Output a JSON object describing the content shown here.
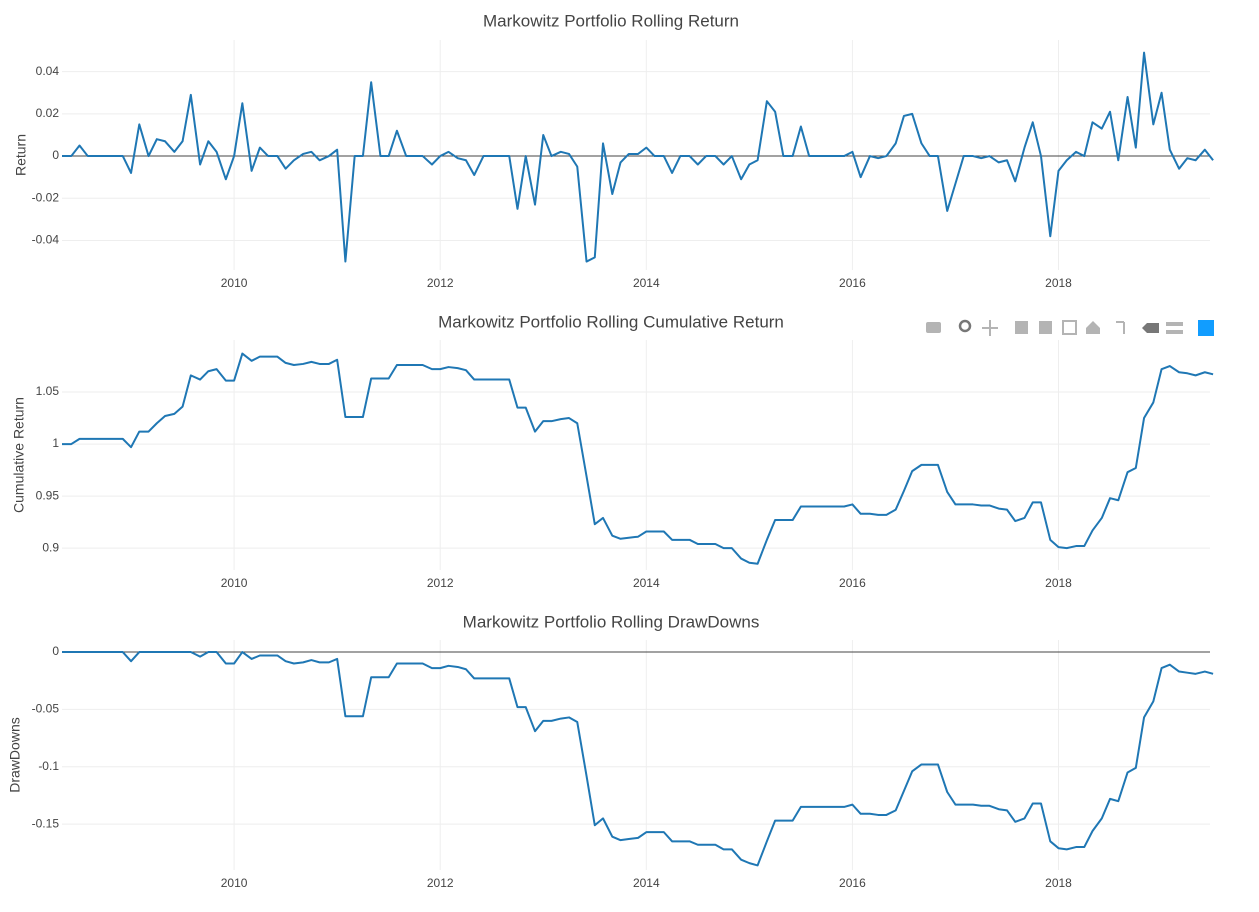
{
  "chart_data": [
    {
      "type": "line",
      "title": "Markowitz Portfolio Rolling Return",
      "y_label": "Return",
      "color": "#1f77b4",
      "grid": true,
      "zeroline": true,
      "xlim": [
        2008.33,
        2019.47
      ],
      "xticks": [
        2010,
        2012,
        2014,
        2016,
        2018
      ],
      "ylim": [
        -0.054,
        0.055
      ],
      "yticks": [
        -0.04,
        -0.02,
        0,
        0.02,
        0.04
      ],
      "x": [
        2008.33,
        2008.42,
        2008.5,
        2008.58,
        2008.67,
        2008.75,
        2008.83,
        2008.92,
        2009,
        2009.08,
        2009.17,
        2009.25,
        2009.33,
        2009.42,
        2009.5,
        2009.58,
        2009.67,
        2009.75,
        2009.83,
        2009.92,
        2010,
        2010.08,
        2010.17,
        2010.25,
        2010.33,
        2010.42,
        2010.5,
        2010.58,
        2010.67,
        2010.75,
        2010.83,
        2010.92,
        2011,
        2011.08,
        2011.17,
        2011.25,
        2011.33,
        2011.42,
        2011.5,
        2011.58,
        2011.67,
        2011.75,
        2011.83,
        2011.92,
        2012,
        2012.08,
        2012.17,
        2012.25,
        2012.33,
        2012.42,
        2012.5,
        2012.58,
        2012.67,
        2012.75,
        2012.83,
        2012.92,
        2013,
        2013.08,
        2013.17,
        2013.25,
        2013.33,
        2013.42,
        2013.5,
        2013.58,
        2013.67,
        2013.75,
        2013.83,
        2013.92,
        2014,
        2014.08,
        2014.17,
        2014.25,
        2014.33,
        2014.42,
        2014.5,
        2014.58,
        2014.67,
        2014.75,
        2014.83,
        2014.92,
        2015,
        2015.08,
        2015.17,
        2015.25,
        2015.33,
        2015.42,
        2015.5,
        2015.58,
        2015.67,
        2015.75,
        2015.83,
        2015.92,
        2016,
        2016.08,
        2016.17,
        2016.25,
        2016.33,
        2016.42,
        2016.5,
        2016.58,
        2016.67,
        2016.75,
        2016.83,
        2016.92,
        2017,
        2017.08,
        2017.17,
        2017.25,
        2017.33,
        2017.42,
        2017.5,
        2017.58,
        2017.67,
        2017.75,
        2017.83,
        2017.92,
        2018,
        2018.08,
        2018.17,
        2018.25,
        2018.33,
        2018.42,
        2018.5,
        2018.58,
        2018.67,
        2018.75,
        2018.83,
        2018.92,
        2019,
        2019.08,
        2019.17,
        2019.25,
        2019.33,
        2019.42,
        2019.5
      ],
      "values": [
        0,
        0,
        0.005,
        0,
        0,
        0,
        0,
        0,
        -0.008,
        0.015,
        0,
        0.008,
        0.007,
        0.002,
        0.007,
        0.029,
        -0.004,
        0.007,
        0.002,
        -0.011,
        0,
        0.025,
        -0.007,
        0.004,
        0,
        0,
        -0.006,
        -0.002,
        0.001,
        0.002,
        -0.002,
        0,
        0.003,
        -0.05,
        0,
        0,
        0.035,
        0,
        0,
        0.012,
        0,
        0,
        0,
        -0.004,
        0,
        0.002,
        -0.001,
        -0.002,
        -0.009,
        0,
        0,
        0,
        0,
        -0.025,
        0,
        -0.023,
        0.01,
        0,
        0.002,
        0.001,
        -0.005,
        -0.05,
        -0.048,
        0.006,
        -0.018,
        -0.003,
        0.001,
        0.001,
        0.004,
        0,
        0,
        -0.008,
        0,
        0,
        -0.004,
        0,
        0,
        -0.004,
        0,
        -0.011,
        -0.004,
        -0.002,
        0.026,
        0.021,
        0,
        0,
        0.014,
        0,
        0,
        0,
        0,
        0,
        0.002,
        -0.01,
        0,
        -0.001,
        0,
        0.006,
        0.019,
        0.02,
        0.006,
        0,
        0,
        -0.026,
        -0.013,
        0,
        0,
        -0.001,
        0,
        -0.003,
        -0.002,
        -0.012,
        0.004,
        0.016,
        0,
        -0.038,
        -0.007,
        -0.002,
        0.002,
        0,
        0.016,
        0.013,
        0.021,
        -0.002,
        0.028,
        0.004,
        0.049,
        0.015,
        0.03,
        0.003,
        -0.006,
        -0.001,
        -0.002,
        0.003,
        -0.002
      ]
    },
    {
      "type": "line",
      "title": "Markowitz Portfolio Rolling Cumulative Return",
      "y_label": "Cumulative Return",
      "color": "#1f77b4",
      "grid": true,
      "zeroline": false,
      "xlim": [
        2008.33,
        2019.47
      ],
      "xticks": [
        2010,
        2012,
        2014,
        2016,
        2018
      ],
      "ylim": [
        0.879,
        1.1
      ],
      "yticks": [
        0.9,
        0.95,
        1,
        1.05
      ],
      "x": [
        2008.33,
        2008.42,
        2008.5,
        2008.58,
        2008.67,
        2008.75,
        2008.83,
        2008.92,
        2009,
        2009.08,
        2009.17,
        2009.25,
        2009.33,
        2009.42,
        2009.5,
        2009.58,
        2009.67,
        2009.75,
        2009.83,
        2009.92,
        2010,
        2010.08,
        2010.17,
        2010.25,
        2010.33,
        2010.42,
        2010.5,
        2010.58,
        2010.67,
        2010.75,
        2010.83,
        2010.92,
        2011,
        2011.08,
        2011.17,
        2011.25,
        2011.33,
        2011.42,
        2011.5,
        2011.58,
        2011.67,
        2011.75,
        2011.83,
        2011.92,
        2012,
        2012.08,
        2012.17,
        2012.25,
        2012.33,
        2012.42,
        2012.5,
        2012.58,
        2012.67,
        2012.75,
        2012.83,
        2012.92,
        2013,
        2013.08,
        2013.17,
        2013.25,
        2013.33,
        2013.42,
        2013.5,
        2013.58,
        2013.67,
        2013.75,
        2013.83,
        2013.92,
        2014,
        2014.08,
        2014.17,
        2014.25,
        2014.33,
        2014.42,
        2014.5,
        2014.58,
        2014.67,
        2014.75,
        2014.83,
        2014.92,
        2015,
        2015.08,
        2015.17,
        2015.25,
        2015.33,
        2015.42,
        2015.5,
        2015.58,
        2015.67,
        2015.75,
        2015.83,
        2015.92,
        2016,
        2016.08,
        2016.17,
        2016.25,
        2016.33,
        2016.42,
        2016.5,
        2016.58,
        2016.67,
        2016.75,
        2016.83,
        2016.92,
        2017,
        2017.08,
        2017.17,
        2017.25,
        2017.33,
        2017.42,
        2017.5,
        2017.58,
        2017.67,
        2017.75,
        2017.83,
        2017.92,
        2018,
        2018.08,
        2018.17,
        2018.25,
        2018.33,
        2018.42,
        2018.5,
        2018.58,
        2018.67,
        2018.75,
        2018.83,
        2018.92,
        2019,
        2019.08,
        2019.17,
        2019.25,
        2019.33,
        2019.42,
        2019.5
      ],
      "values": [
        1,
        1,
        1.005,
        1.005,
        1.005,
        1.005,
        1.005,
        1.005,
        0.997,
        1.012,
        1.012,
        1.02,
        1.027,
        1.029,
        1.036,
        1.066,
        1.062,
        1.07,
        1.072,
        1.061,
        1.061,
        1.087,
        1.08,
        1.084,
        1.084,
        1.084,
        1.078,
        1.076,
        1.077,
        1.079,
        1.077,
        1.077,
        1.081,
        1.026,
        1.026,
        1.026,
        1.063,
        1.063,
        1.063,
        1.076,
        1.076,
        1.076,
        1.076,
        1.072,
        1.072,
        1.074,
        1.073,
        1.071,
        1.062,
        1.062,
        1.062,
        1.062,
        1.062,
        1.035,
        1.035,
        1.012,
        1.022,
        1.022,
        1.024,
        1.025,
        1.02,
        0.969,
        0.923,
        0.929,
        0.912,
        0.909,
        0.91,
        0.911,
        0.916,
        0.916,
        0.916,
        0.908,
        0.908,
        0.908,
        0.904,
        0.904,
        0.904,
        0.9,
        0.9,
        0.89,
        0.886,
        0.885,
        0.908,
        0.927,
        0.927,
        0.927,
        0.94,
        0.94,
        0.94,
        0.94,
        0.94,
        0.94,
        0.942,
        0.933,
        0.933,
        0.932,
        0.932,
        0.937,
        0.955,
        0.974,
        0.98,
        0.98,
        0.98,
        0.954,
        0.942,
        0.942,
        0.942,
        0.941,
        0.941,
        0.938,
        0.937,
        0.926,
        0.929,
        0.944,
        0.944,
        0.908,
        0.901,
        0.9,
        0.902,
        0.902,
        0.917,
        0.929,
        0.948,
        0.946,
        0.973,
        0.977,
        1.025,
        1.04,
        1.072,
        1.075,
        1.069,
        1.068,
        1.066,
        1.069,
        1.067
      ]
    },
    {
      "type": "line",
      "title": "Markowitz Portfolio Rolling DrawDowns",
      "y_label": "DrawDowns",
      "color": "#1f77b4",
      "grid": true,
      "zeroline": true,
      "xlim": [
        2008.33,
        2019.47
      ],
      "xticks": [
        2010,
        2012,
        2014,
        2016,
        2018
      ],
      "ylim": [
        -0.19,
        0.0105
      ],
      "yticks": [
        -0.15,
        -0.1,
        -0.05,
        0
      ],
      "x": [
        2008.33,
        2008.42,
        2008.5,
        2008.58,
        2008.67,
        2008.75,
        2008.83,
        2008.92,
        2009,
        2009.08,
        2009.17,
        2009.25,
        2009.33,
        2009.42,
        2009.5,
        2009.58,
        2009.67,
        2009.75,
        2009.83,
        2009.92,
        2010,
        2010.08,
        2010.17,
        2010.25,
        2010.33,
        2010.42,
        2010.5,
        2010.58,
        2010.67,
        2010.75,
        2010.83,
        2010.92,
        2011,
        2011.08,
        2011.17,
        2011.25,
        2011.33,
        2011.42,
        2011.5,
        2011.58,
        2011.67,
        2011.75,
        2011.83,
        2011.92,
        2012,
        2012.08,
        2012.17,
        2012.25,
        2012.33,
        2012.42,
        2012.5,
        2012.58,
        2012.67,
        2012.75,
        2012.83,
        2012.92,
        2013,
        2013.08,
        2013.17,
        2013.25,
        2013.33,
        2013.42,
        2013.5,
        2013.58,
        2013.67,
        2013.75,
        2013.83,
        2013.92,
        2014,
        2014.08,
        2014.17,
        2014.25,
        2014.33,
        2014.42,
        2014.5,
        2014.58,
        2014.67,
        2014.75,
        2014.83,
        2014.92,
        2015,
        2015.08,
        2015.17,
        2015.25,
        2015.33,
        2015.42,
        2015.5,
        2015.58,
        2015.67,
        2015.75,
        2015.83,
        2015.92,
        2016,
        2016.08,
        2016.17,
        2016.25,
        2016.33,
        2016.42,
        2016.5,
        2016.58,
        2016.67,
        2016.75,
        2016.83,
        2016.92,
        2017,
        2017.08,
        2017.17,
        2017.25,
        2017.33,
        2017.42,
        2017.5,
        2017.58,
        2017.67,
        2017.75,
        2017.83,
        2017.92,
        2018,
        2018.08,
        2018.17,
        2018.25,
        2018.33,
        2018.42,
        2018.5,
        2018.58,
        2018.67,
        2018.75,
        2018.83,
        2018.92,
        2019,
        2019.08,
        2019.17,
        2019.25,
        2019.33,
        2019.42,
        2019.5
      ],
      "values": [
        0,
        0,
        0,
        0,
        0,
        0,
        0,
        0,
        -0.008,
        0,
        0,
        0,
        0,
        0,
        0,
        0,
        -0.004,
        0,
        0,
        -0.01,
        -0.01,
        0,
        -0.006,
        -0.003,
        -0.003,
        -0.003,
        -0.008,
        -0.01,
        -0.009,
        -0.007,
        -0.009,
        -0.009,
        -0.006,
        -0.056,
        -0.056,
        -0.056,
        -0.022,
        -0.022,
        -0.022,
        -0.01,
        -0.01,
        -0.01,
        -0.01,
        -0.014,
        -0.014,
        -0.012,
        -0.013,
        -0.015,
        -0.023,
        -0.023,
        -0.023,
        -0.023,
        -0.023,
        -0.048,
        -0.048,
        -0.069,
        -0.06,
        -0.06,
        -0.058,
        -0.057,
        -0.061,
        -0.108,
        -0.151,
        -0.145,
        -0.161,
        -0.164,
        -0.163,
        -0.162,
        -0.157,
        -0.157,
        -0.157,
        -0.165,
        -0.165,
        -0.165,
        -0.168,
        -0.168,
        -0.168,
        -0.172,
        -0.172,
        -0.181,
        -0.184,
        -0.186,
        -0.165,
        -0.147,
        -0.147,
        -0.147,
        -0.135,
        -0.135,
        -0.135,
        -0.135,
        -0.135,
        -0.135,
        -0.133,
        -0.141,
        -0.141,
        -0.142,
        -0.142,
        -0.138,
        -0.121,
        -0.104,
        -0.098,
        -0.098,
        -0.098,
        -0.122,
        -0.133,
        -0.133,
        -0.133,
        -0.134,
        -0.134,
        -0.137,
        -0.138,
        -0.148,
        -0.145,
        -0.132,
        -0.132,
        -0.165,
        -0.171,
        -0.172,
        -0.17,
        -0.17,
        -0.156,
        -0.145,
        -0.128,
        -0.13,
        -0.105,
        -0.101,
        -0.057,
        -0.043,
        -0.014,
        -0.011,
        -0.017,
        -0.018,
        -0.019,
        -0.017,
        -0.019
      ]
    }
  ]
}
